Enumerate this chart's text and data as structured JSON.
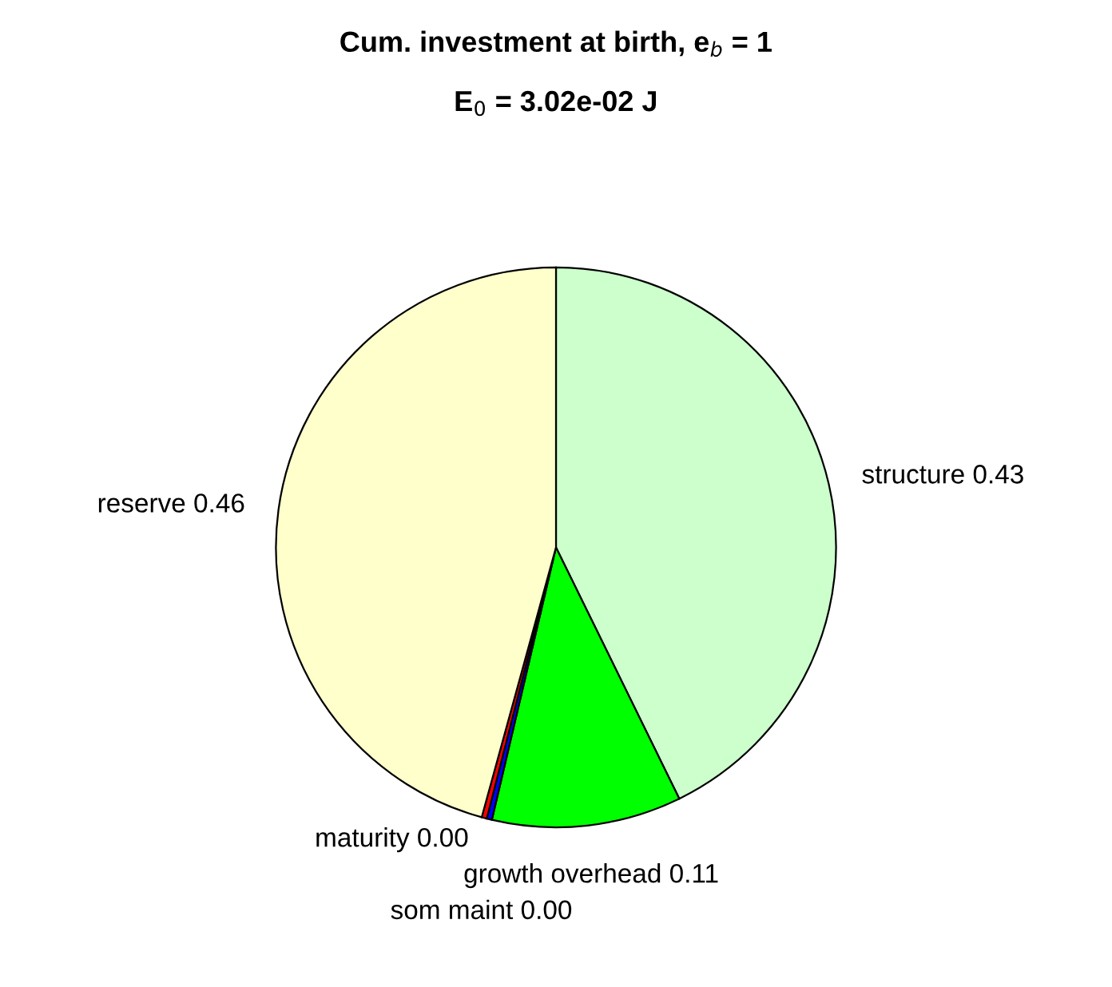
{
  "chart_data": {
    "type": "pie",
    "title": "Cum. investment at birth, e$_{b}$ = 1",
    "subtitle": "E$_{0}$ = 3.02e-02 J",
    "categories": [
      "structure",
      "growth overhead",
      "som maint",
      "maturity",
      "reserve"
    ],
    "values": [
      0.43,
      0.11,
      0.003,
      0.003,
      0.46
    ],
    "value_labels": [
      "0.43",
      "0.11",
      "0.00",
      "0.00",
      "0.46"
    ],
    "colors": [
      "#ccffcc",
      "#00ff00",
      "#0000ff",
      "#ff0000",
      "#ffffcc"
    ],
    "legend": false
  }
}
